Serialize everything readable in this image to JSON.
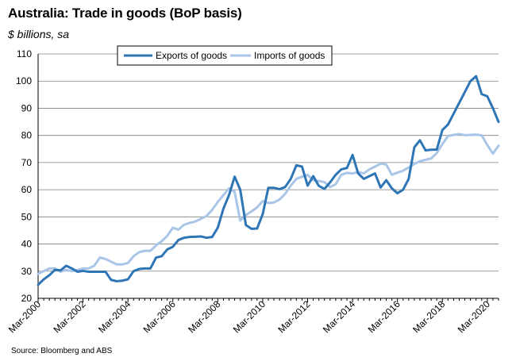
{
  "header": {
    "title": "Australia: Trade in goods (BoP basis)",
    "subtitle": "$ billions, sa"
  },
  "footer": {
    "source": "Source: Bloomberg and ABS"
  },
  "colors": {
    "exports": "#2e75b6",
    "imports": "#a9c5e8",
    "grid": "#7f7f7f",
    "axis": "#000000"
  },
  "chart_data": {
    "type": "line",
    "title": "Australia: Trade in goods (BoP basis)",
    "ylabel": "$ billions, sa",
    "xlabel": "",
    "ylim": [
      20,
      110
    ],
    "yticks": [
      20,
      30,
      40,
      50,
      60,
      70,
      80,
      90,
      100,
      110
    ],
    "xlim": [
      "Mar-2000",
      "Sep-2020"
    ],
    "xtick_labels": [
      "Mar-2000",
      "Mar-2002",
      "Mar-2004",
      "Mar-2006",
      "Mar-2008",
      "Mar-2010",
      "Mar-2012",
      "Mar-2014",
      "Mar-2016",
      "Mar-2018",
      "Mar-2020"
    ],
    "grid": true,
    "legend_position": "top-center",
    "x": [
      "Mar-2000",
      "Jun-2000",
      "Sep-2000",
      "Dec-2000",
      "Mar-2001",
      "Jun-2001",
      "Sep-2001",
      "Dec-2001",
      "Mar-2002",
      "Jun-2002",
      "Sep-2002",
      "Dec-2002",
      "Mar-2003",
      "Jun-2003",
      "Sep-2003",
      "Dec-2003",
      "Mar-2004",
      "Jun-2004",
      "Sep-2004",
      "Dec-2004",
      "Mar-2005",
      "Jun-2005",
      "Sep-2005",
      "Dec-2005",
      "Mar-2006",
      "Jun-2006",
      "Sep-2006",
      "Dec-2006",
      "Mar-2007",
      "Jun-2007",
      "Sep-2007",
      "Dec-2007",
      "Mar-2008",
      "Jun-2008",
      "Sep-2008",
      "Dec-2008",
      "Mar-2009",
      "Jun-2009",
      "Sep-2009",
      "Dec-2009",
      "Mar-2010",
      "Jun-2010",
      "Sep-2010",
      "Dec-2010",
      "Mar-2011",
      "Jun-2011",
      "Sep-2011",
      "Dec-2011",
      "Mar-2012",
      "Jun-2012",
      "Sep-2012",
      "Dec-2012",
      "Mar-2013",
      "Jun-2013",
      "Sep-2013",
      "Dec-2013",
      "Mar-2014",
      "Jun-2014",
      "Sep-2014",
      "Dec-2014",
      "Mar-2015",
      "Jun-2015",
      "Sep-2015",
      "Dec-2015",
      "Mar-2016",
      "Jun-2016",
      "Sep-2016",
      "Dec-2016",
      "Mar-2017",
      "Jun-2017",
      "Sep-2017",
      "Dec-2017",
      "Mar-2018",
      "Jun-2018",
      "Sep-2018",
      "Dec-2018",
      "Mar-2019",
      "Jun-2019",
      "Sep-2019",
      "Dec-2019",
      "Mar-2020",
      "Jun-2020",
      "Sep-2020"
    ],
    "series": [
      {
        "name": "Exports of goods",
        "values": [
          25,
          27,
          28.5,
          30.5,
          30.3,
          32,
          31,
          29.8,
          30.1,
          29.8,
          29.8,
          29.8,
          29.8,
          26.8,
          26.3,
          26.5,
          27,
          30,
          30.8,
          31,
          31,
          35,
          35.5,
          38,
          39,
          41.5,
          42.3,
          42.6,
          42.7,
          42.8,
          42.3,
          42.6,
          46,
          53,
          58,
          64.8,
          60,
          47,
          45.6,
          45.7,
          51,
          60.7,
          60.7,
          60.2,
          61,
          64,
          69,
          68.5,
          61.5,
          65,
          61.4,
          60.3,
          62.7,
          65.5,
          67.5,
          68,
          72.8,
          66,
          64,
          65,
          66,
          60.8,
          63.5,
          60.5,
          58.7,
          60,
          64,
          75.6,
          78.2,
          74.5,
          74.7,
          74.8,
          82,
          84,
          88,
          92,
          96,
          100,
          101.8,
          95.2,
          94.4,
          90,
          85
        ]
      },
      {
        "name": "Imports of goods",
        "values": [
          29,
          30,
          31,
          31,
          29.8,
          30.5,
          30,
          30.4,
          31,
          31,
          32,
          35,
          34.5,
          33.5,
          32.5,
          32.5,
          33,
          35.5,
          37,
          37.5,
          37.5,
          39.5,
          41,
          43,
          46,
          45.3,
          47.1,
          47.8,
          48.3,
          49.3,
          50.3,
          52.6,
          55.5,
          58,
          60.5,
          59.2,
          48.6,
          50.7,
          52,
          53.5,
          55.8,
          55.1,
          55.3,
          56.4,
          58.5,
          61.5,
          64,
          64.8,
          65.5,
          63.5,
          63.2,
          62.8,
          61,
          62,
          65.5,
          66.2,
          66,
          66.5,
          66,
          67.5,
          68.5,
          69.6,
          69.3,
          65.5,
          66.3,
          67,
          68.2,
          69.5,
          70.5,
          71,
          71.5,
          73.5,
          76.8,
          79.8,
          80.2,
          80.5,
          80.1,
          80.2,
          80.3,
          80,
          76.5,
          73.3,
          76.2
        ]
      }
    ]
  }
}
